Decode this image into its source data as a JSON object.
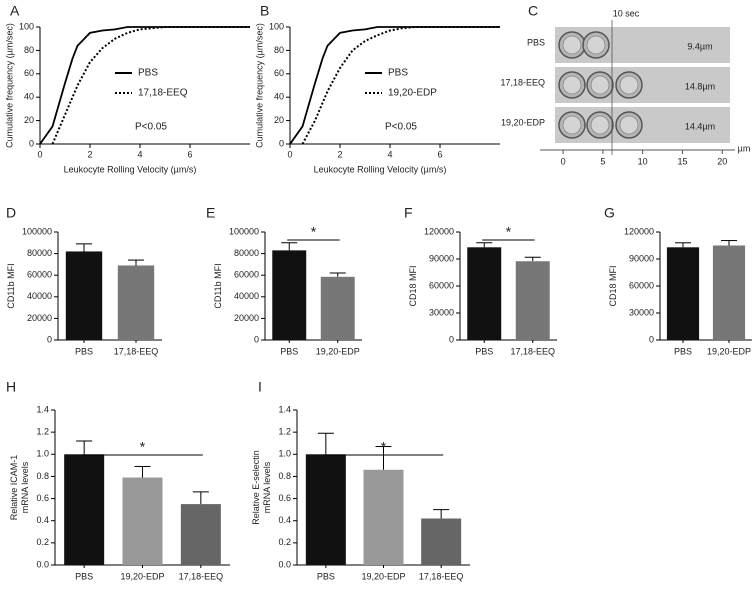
{
  "chart_data": [
    {
      "type": "line",
      "label": "A",
      "ylabel": "Cumulative frequency (µm/sec)",
      "xlabel": "Leukocyte Rolling Velocity (µm/s)",
      "annotation": "P<0.05",
      "xlim": [
        0,
        8.4
      ],
      "xticks": [
        0,
        2,
        4,
        6
      ],
      "ylim": [
        0,
        100
      ],
      "yticks": [
        0,
        20,
        40,
        60,
        80,
        100
      ],
      "series": [
        {
          "name": "PBS",
          "color": "#000000",
          "dash": "solid",
          "x": [
            0,
            0.5,
            1,
            1.3,
            1.5,
            2,
            2.5,
            3,
            3.5,
            8.4
          ],
          "values": [
            0,
            15,
            52,
            73,
            84,
            95,
            97,
            98,
            100,
            100
          ]
        },
        {
          "name": "17,18-EEQ",
          "color": "#000000",
          "dash": "dotted",
          "x": [
            0.5,
            1,
            1.5,
            2,
            2.5,
            3,
            3.5,
            4,
            4.5,
            5,
            8.4
          ],
          "values": [
            0,
            25,
            50,
            70,
            82,
            90,
            95,
            98,
            99,
            100,
            100
          ]
        }
      ]
    },
    {
      "type": "line",
      "label": "B",
      "ylabel": "Cumulative frequency (µm/sec)",
      "xlabel": "Leukocyte Rolling Velocity (µm/s)",
      "annotation": "P<0.05",
      "xlim": [
        0,
        8.4
      ],
      "xticks": [
        0,
        2,
        4,
        6
      ],
      "ylim": [
        0,
        100
      ],
      "yticks": [
        0,
        20,
        40,
        60,
        80,
        100
      ],
      "series": [
        {
          "name": "PBS",
          "color": "#000000",
          "dash": "solid",
          "x": [
            0,
            0.5,
            1,
            1.3,
            1.5,
            2,
            2.5,
            3,
            3.5,
            8.4
          ],
          "values": [
            0,
            15,
            52,
            73,
            84,
            95,
            97,
            98,
            100,
            100
          ]
        },
        {
          "name": "19,20-EDP",
          "color": "#000000",
          "dash": "dotted",
          "x": [
            0.5,
            1,
            1.5,
            2,
            2.5,
            3,
            3.5,
            4,
            4.5,
            5,
            8.4
          ],
          "values": [
            0,
            20,
            45,
            65,
            80,
            88,
            93,
            97,
            99,
            100,
            100
          ]
        }
      ]
    },
    {
      "type": "micrograph",
      "label": "C",
      "time_label": "10 sec",
      "x_unit": "µm",
      "xlim": [
        -2.9,
        21.6
      ],
      "xticks": [
        0,
        5,
        10,
        15,
        20
      ],
      "rows": [
        {
          "name": "PBS",
          "measurement": "9.4µm"
        },
        {
          "name": "17,18-EEQ",
          "measurement": "14.8µm"
        },
        {
          "name": "19,20-EDP",
          "measurement": "14.4µm"
        }
      ]
    },
    {
      "type": "bar",
      "label": "D",
      "ylabel": [
        "CD11b MFI"
      ],
      "categories": [
        "PBS",
        "17,18-EEQ"
      ],
      "values": [
        82000,
        69000
      ],
      "errors": [
        7000,
        5000
      ],
      "colors": [
        "#111111",
        "#777777"
      ],
      "ylim": [
        0,
        100000
      ],
      "yticks": [
        0,
        20000,
        40000,
        60000,
        80000,
        100000
      ]
    },
    {
      "type": "bar",
      "label": "E",
      "ylabel": [
        "CD11b MFI"
      ],
      "categories": [
        "PBS",
        "19,20-EDP"
      ],
      "values": [
        83000,
        58500
      ],
      "errors": [
        7000,
        3500
      ],
      "colors": [
        "#111111",
        "#777777"
      ],
      "ylim": [
        0,
        100000
      ],
      "yticks": [
        0,
        20000,
        40000,
        60000,
        80000,
        100000
      ],
      "significance": "*"
    },
    {
      "type": "bar",
      "label": "F",
      "ylabel": [
        "CD18 MFI"
      ],
      "categories": [
        "PBS",
        "17,18-EEQ"
      ],
      "values": [
        103000,
        87500
      ],
      "errors": [
        5000,
        4500
      ],
      "colors": [
        "#111111",
        "#777777"
      ],
      "ylim": [
        0,
        120000
      ],
      "yticks": [
        0,
        30000,
        60000,
        90000,
        120000
      ],
      "significance": "*"
    },
    {
      "type": "bar",
      "label": "G",
      "ylabel": [
        "CD18 MFI"
      ],
      "categories": [
        "PBS",
        "19,20-EDP"
      ],
      "values": [
        103000,
        105000
      ],
      "errors": [
        5000,
        5500
      ],
      "colors": [
        "#111111",
        "#777777"
      ],
      "ylim": [
        0,
        120000
      ],
      "yticks": [
        0,
        30000,
        60000,
        90000,
        120000
      ]
    },
    {
      "type": "bar",
      "label": "H",
      "ylabel": [
        "Relative ICAM-1",
        "mRNA levels"
      ],
      "categories": [
        "PBS",
        "19,20-EDP",
        "17,18-EEQ"
      ],
      "values": [
        1.0,
        0.79,
        0.55
      ],
      "errors": [
        0.12,
        0.1,
        0.11
      ],
      "colors": [
        "#111111",
        "#999999",
        "#666666"
      ],
      "ylim": [
        0,
        1.4
      ],
      "yticks": [
        {
          "value": 0,
          "label": "0.0"
        },
        0.2,
        0.4,
        0.6,
        0.8,
        {
          "value": 1,
          "label": "1.0"
        },
        1.2,
        1.4
      ],
      "significance": "*"
    },
    {
      "type": "bar",
      "label": "I",
      "ylabel": [
        "Relative E-selectin",
        "mRNA levels"
      ],
      "categories": [
        "PBS",
        "19,20-EDP",
        "17,18-EEQ"
      ],
      "values": [
        1.0,
        0.86,
        0.42
      ],
      "errors": [
        0.19,
        0.21,
        0.08
      ],
      "colors": [
        "#111111",
        "#999999",
        "#666666"
      ],
      "ylim": [
        0,
        1.4
      ],
      "yticks": [
        {
          "value": 0,
          "label": "0.0"
        },
        0.2,
        0.4,
        0.6,
        0.8,
        {
          "value": 1,
          "label": "1.0"
        },
        1.2,
        1.4
      ],
      "significance": "*"
    }
  ]
}
